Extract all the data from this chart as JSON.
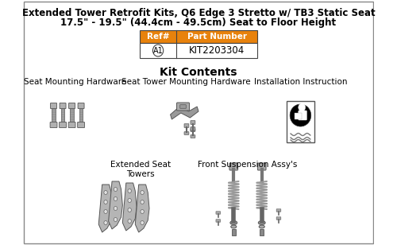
{
  "title_line1": "Extended Tower Retrofit Kits, Q6 Edge 3 Stretto w/ TB3 Static Seat",
  "title_line2": "17.5\" - 19.5\" (44.4cm - 49.5cm) Seat to Floor Height",
  "table_header": [
    "Ref#",
    "Part Number"
  ],
  "table_row": [
    "A1",
    "KIT2203304"
  ],
  "section_title": "Kit Contents",
  "labels": {
    "seat_mounting": "Seat Mounting Hardware",
    "seat_tower": "Seat Tower Mounting Hardware",
    "installation": "Installation Instruction",
    "extended_seat": "Extended Seat\nTowers",
    "front_suspension": "Front Suspension Assy's"
  },
  "header_bg": "#E8820C",
  "header_text": "#FFFFFF",
  "border_color": "#444444",
  "bg_color": "#FFFFFF",
  "table_bg": "#FFFFFF",
  "text_color": "#000000",
  "font_size_title": 8.5,
  "font_size_section": 10,
  "font_size_label": 7.5,
  "fig_bg": "#FFFFFF",
  "outer_border": "#888888",
  "part_color": "#AAAAAA",
  "part_edge": "#555555"
}
